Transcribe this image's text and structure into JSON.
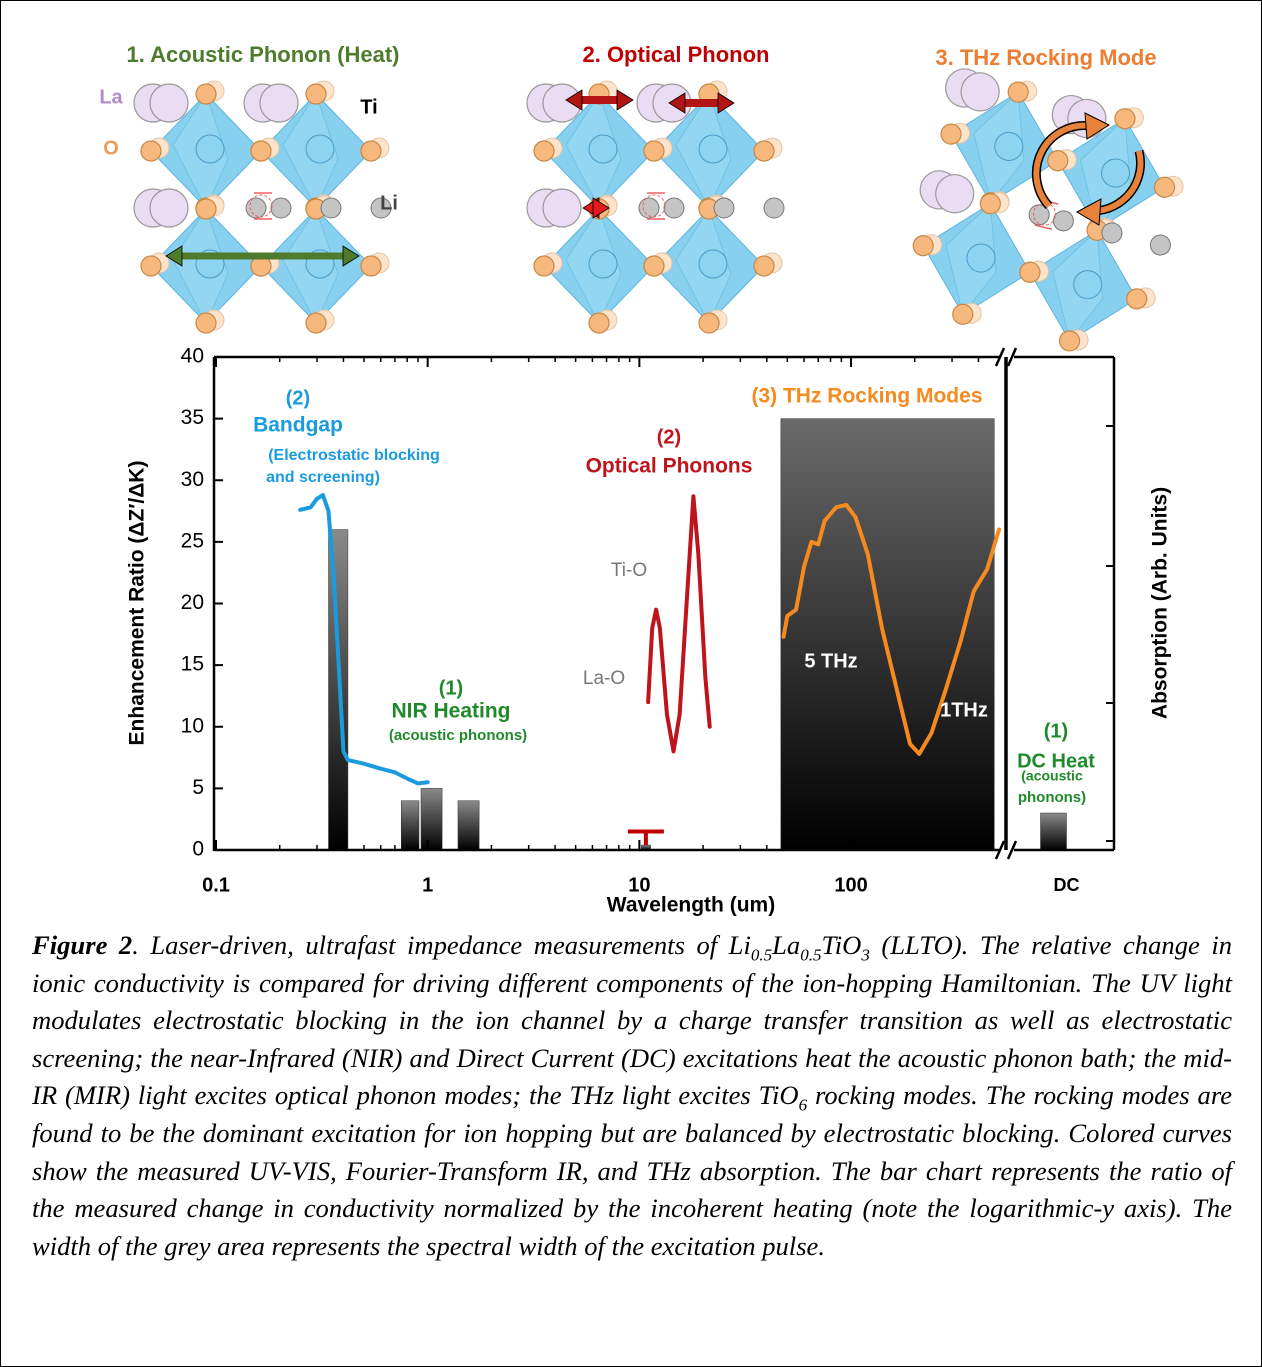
{
  "panels": [
    {
      "title": "1. Acoustic Phonon (Heat)",
      "color": "#4f7b2d"
    },
    {
      "title": "2. Optical Phonon",
      "color": "#c00000"
    },
    {
      "title": "3. THz Rocking Mode",
      "color": "#ed7d31"
    }
  ],
  "atom_labels": {
    "la": "La",
    "o": "O",
    "ti": "Ti",
    "li": "Li"
  },
  "chart_data": {
    "type": "bar",
    "xlabel": "Wavelength (um)",
    "ylabel": "Enhancement Ratio (ΔZ′/ΔK)",
    "y2label": "Absorption (Arb. Units)",
    "xscale": "log",
    "xlim": [
      0.1,
      500
    ],
    "xticks": [
      0.1,
      1,
      10,
      100
    ],
    "ylim": [
      0,
      40
    ],
    "yticks": [
      0,
      5,
      10,
      15,
      20,
      25,
      30,
      35,
      40
    ],
    "bars": {
      "x_start": [
        0.34,
        0.75,
        0.93,
        1.39,
        10.2,
        46.6
      ],
      "x_end": [
        0.42,
        0.91,
        1.17,
        1.75,
        11.3,
        475
      ],
      "values": [
        26,
        4,
        5,
        4,
        0.4,
        35
      ],
      "errors": [
        null,
        null,
        null,
        null,
        1.1,
        null
      ],
      "error_color": "#c00000"
    },
    "dc": {
      "label": "DC",
      "value": 3
    },
    "curves": [
      {
        "color": "#1a9be0",
        "x": [
          0.25,
          0.28,
          0.3,
          0.32,
          0.34,
          0.36,
          0.38,
          0.4,
          0.42,
          0.5,
          0.6,
          0.7,
          0.8,
          0.9,
          1.0
        ],
        "values": [
          27.6,
          27.8,
          28.5,
          28.8,
          27.5,
          22,
          15,
          8,
          7.3,
          7,
          6.6,
          6.3,
          5.8,
          5.4,
          5.5
        ]
      },
      {
        "color": "#c0141c",
        "x": [
          11,
          11.5,
          12,
          12.5,
          13.5,
          14.5,
          15.5,
          17,
          18,
          19,
          20.5,
          21.5
        ],
        "values": [
          12,
          18,
          19.5,
          18,
          11,
          8,
          11,
          22,
          28.7,
          24,
          14,
          10
        ]
      },
      {
        "color": "#f58a1f",
        "x": [
          48,
          50,
          55,
          60,
          65,
          70,
          75,
          85,
          95,
          105,
          120,
          140,
          170,
          190,
          210,
          240,
          280,
          330,
          380,
          440,
          500
        ],
        "values": [
          17.3,
          19,
          19.5,
          23,
          25,
          24.8,
          26.7,
          27.8,
          28,
          27,
          24,
          18,
          12,
          8.6,
          7.8,
          9.5,
          13,
          17,
          21,
          22.8,
          26
        ]
      }
    ],
    "annotations": {
      "bandgap_num": "(2)",
      "bandgap": "Bandgap",
      "bandgap_note1": "(Electrostatic blocking",
      "bandgap_note2": "and screening)",
      "optical_num": "(2)",
      "optical": "Optical Phonons",
      "tio": "Ti-O",
      "lao": "La-O",
      "nir_num": "(1)",
      "nir": "NIR Heating",
      "nir_note": "(acoustic phonons)",
      "thz": "(3) THz Rocking Modes",
      "thz5": "5 THz",
      "thz1": "1THz",
      "dc_num": "(1)",
      "dc": "DC Heat",
      "dc_note1": "(acoustic",
      "dc_note2": "phonons)"
    }
  },
  "caption": {
    "label": "Figure 2",
    "parts": [
      ". Laser-driven, ultrafast impedance measurements of Li",
      "0.5",
      "La",
      "0.5",
      "TiO",
      "3",
      " (LLTO). The relative change in ionic conductivity is compared for driving different components of the ion-hopping Hamiltonian. The UV light modulates electrostatic blocking in the ion channel by a charge transfer transition as well as electrostatic screening; the near-Infrared (NIR) and Direct Current (DC) excitations heat the acoustic phonon bath; the mid-IR (MIR) light excites optical phonon modes; the THz light excites TiO",
      "6",
      " rocking modes. The rocking modes are found to be the dominant excitation for ion hopping but are balanced by electrostatic blocking. Colored curves show the measured UV-VIS, Fourier-Transform IR, and THz absorption. The bar chart represents the ratio of the measured change in conductivity normalized by the incoherent heating (note the logarithmic-y axis). The width of the grey area represents the spectral width of the excitation pulse."
    ]
  }
}
